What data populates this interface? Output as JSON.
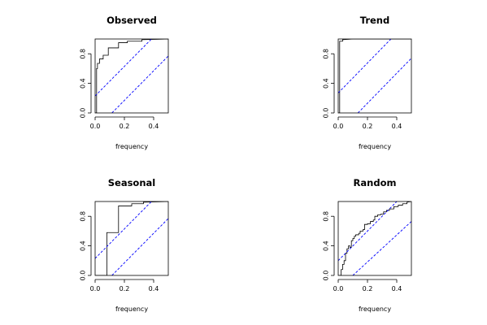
{
  "chart_data": [
    {
      "type": "line",
      "subtype": "cumulative-periodogram",
      "title": "Observed",
      "xlabel": "frequency",
      "ylabel": "",
      "xlim": [
        0,
        0.5
      ],
      "ylim": [
        0,
        1
      ],
      "xticks": [
        0.0,
        0.2,
        0.4
      ],
      "xtick_labels": [
        "0.0",
        "0.2",
        "0.4"
      ],
      "yticks": [
        0.0,
        0.4,
        0.8
      ],
      "ytick_labels": [
        "0.0",
        "0.4",
        "0.8"
      ],
      "grid": false,
      "series": [
        {
          "role": "cumulative-periodogram",
          "color": "#000000",
          "points": [
            [
              0.0,
              0.0
            ],
            [
              0.01,
              0.0
            ],
            [
              0.01,
              0.6
            ],
            [
              0.016,
              0.6
            ],
            [
              0.016,
              0.67
            ],
            [
              0.03,
              0.67
            ],
            [
              0.03,
              0.73
            ],
            [
              0.055,
              0.73
            ],
            [
              0.055,
              0.78
            ],
            [
              0.09,
              0.78
            ],
            [
              0.09,
              0.88
            ],
            [
              0.16,
              0.88
            ],
            [
              0.16,
              0.95
            ],
            [
              0.22,
              0.95
            ],
            [
              0.22,
              0.97
            ],
            [
              0.32,
              0.97
            ],
            [
              0.32,
              0.99
            ],
            [
              0.5,
              1.0
            ]
          ]
        },
        {
          "role": "confidence-band-upper",
          "color": "#0000ff",
          "dashed": true,
          "points": [
            [
              0.0,
              0.23
            ],
            [
              0.385,
              1.0
            ]
          ]
        },
        {
          "role": "confidence-band-lower",
          "color": "#0000ff",
          "dashed": true,
          "points": [
            [
              0.115,
              0.0
            ],
            [
              0.5,
              0.77
            ]
          ]
        }
      ]
    },
    {
      "type": "line",
      "subtype": "cumulative-periodogram",
      "title": "Trend",
      "xlabel": "frequency",
      "ylabel": "",
      "xlim": [
        0,
        0.5
      ],
      "ylim": [
        0,
        1
      ],
      "xticks": [
        0.0,
        0.2,
        0.4
      ],
      "xtick_labels": [
        "0.0",
        "0.2",
        "0.4"
      ],
      "yticks": [
        0.0,
        0.4,
        0.8
      ],
      "ytick_labels": [
        "0.0",
        "0.4",
        "0.8"
      ],
      "grid": false,
      "series": [
        {
          "role": "cumulative-periodogram",
          "color": "#000000",
          "points": [
            [
              0.0,
              0.0
            ],
            [
              0.01,
              0.0
            ],
            [
              0.01,
              0.97
            ],
            [
              0.03,
              0.97
            ],
            [
              0.03,
              0.99
            ],
            [
              0.1,
              1.0
            ],
            [
              0.5,
              1.0
            ]
          ]
        },
        {
          "role": "confidence-band-upper",
          "color": "#0000ff",
          "dashed": true,
          "points": [
            [
              0.0,
              0.27
            ],
            [
              0.36,
              1.0
            ]
          ]
        },
        {
          "role": "confidence-band-lower",
          "color": "#0000ff",
          "dashed": true,
          "points": [
            [
              0.135,
              0.0
            ],
            [
              0.495,
              0.73
            ]
          ]
        }
      ]
    },
    {
      "type": "line",
      "subtype": "cumulative-periodogram",
      "title": "Seasonal",
      "xlabel": "frequency",
      "ylabel": "",
      "xlim": [
        0,
        0.5
      ],
      "ylim": [
        0,
        1
      ],
      "xticks": [
        0.0,
        0.2,
        0.4
      ],
      "xtick_labels": [
        "0.0",
        "0.2",
        "0.4"
      ],
      "yticks": [
        0.0,
        0.4,
        0.8
      ],
      "ytick_labels": [
        "0.0",
        "0.4",
        "0.8"
      ],
      "grid": false,
      "series": [
        {
          "role": "cumulative-periodogram",
          "color": "#000000",
          "points": [
            [
              0.0,
              0.0
            ],
            [
              0.08,
              0.0
            ],
            [
              0.08,
              0.58
            ],
            [
              0.16,
              0.58
            ],
            [
              0.16,
              0.94
            ],
            [
              0.25,
              0.94
            ],
            [
              0.25,
              0.97
            ],
            [
              0.33,
              0.97
            ],
            [
              0.33,
              0.99
            ],
            [
              0.5,
              1.0
            ]
          ]
        },
        {
          "role": "confidence-band-upper",
          "color": "#0000ff",
          "dashed": true,
          "points": [
            [
              0.0,
              0.23
            ],
            [
              0.385,
              1.0
            ]
          ]
        },
        {
          "role": "confidence-band-lower",
          "color": "#0000ff",
          "dashed": true,
          "points": [
            [
              0.115,
              0.0
            ],
            [
              0.5,
              0.77
            ]
          ]
        }
      ]
    },
    {
      "type": "line",
      "subtype": "cumulative-periodogram",
      "title": "Random",
      "xlabel": "frequency",
      "ylabel": "",
      "xlim": [
        0,
        0.5
      ],
      "ylim": [
        0,
        1
      ],
      "xticks": [
        0.0,
        0.2,
        0.4
      ],
      "xtick_labels": [
        "0.0",
        "0.2",
        "0.4"
      ],
      "yticks": [
        0.0,
        0.4,
        0.8
      ],
      "ytick_labels": [
        "0.0",
        "0.4",
        "0.8"
      ],
      "grid": false,
      "series": [
        {
          "role": "cumulative-periodogram",
          "color": "#000000",
          "points": [
            [
              0.0,
              0.0
            ],
            [
              0.02,
              0.0
            ],
            [
              0.02,
              0.08
            ],
            [
              0.03,
              0.08
            ],
            [
              0.03,
              0.15
            ],
            [
              0.04,
              0.15
            ],
            [
              0.04,
              0.2
            ],
            [
              0.05,
              0.2
            ],
            [
              0.05,
              0.3
            ],
            [
              0.06,
              0.3
            ],
            [
              0.06,
              0.36
            ],
            [
              0.07,
              0.36
            ],
            [
              0.07,
              0.4
            ],
            [
              0.08,
              0.4
            ],
            [
              0.08,
              0.38
            ],
            [
              0.09,
              0.38
            ],
            [
              0.09,
              0.47
            ],
            [
              0.1,
              0.47
            ],
            [
              0.1,
              0.5
            ],
            [
              0.11,
              0.5
            ],
            [
              0.11,
              0.53
            ],
            [
              0.12,
              0.53
            ],
            [
              0.12,
              0.55
            ],
            [
              0.14,
              0.55
            ],
            [
              0.14,
              0.57
            ],
            [
              0.15,
              0.57
            ],
            [
              0.15,
              0.6
            ],
            [
              0.17,
              0.6
            ],
            [
              0.17,
              0.62
            ],
            [
              0.18,
              0.62
            ],
            [
              0.18,
              0.69
            ],
            [
              0.2,
              0.69
            ],
            [
              0.2,
              0.7
            ],
            [
              0.22,
              0.7
            ],
            [
              0.22,
              0.73
            ],
            [
              0.24,
              0.73
            ],
            [
              0.24,
              0.75
            ],
            [
              0.25,
              0.75
            ],
            [
              0.25,
              0.8
            ],
            [
              0.27,
              0.8
            ],
            [
              0.27,
              0.82
            ],
            [
              0.29,
              0.82
            ],
            [
              0.29,
              0.83
            ],
            [
              0.31,
              0.83
            ],
            [
              0.31,
              0.86
            ],
            [
              0.33,
              0.86
            ],
            [
              0.33,
              0.88
            ],
            [
              0.35,
              0.88
            ],
            [
              0.35,
              0.9
            ],
            [
              0.38,
              0.9
            ],
            [
              0.38,
              0.93
            ],
            [
              0.41,
              0.93
            ],
            [
              0.41,
              0.95
            ],
            [
              0.44,
              0.95
            ],
            [
              0.44,
              0.97
            ],
            [
              0.47,
              0.97
            ],
            [
              0.47,
              0.99
            ],
            [
              0.5,
              1.0
            ]
          ]
        },
        {
          "role": "confidence-band-upper",
          "color": "#0000ff",
          "dashed": true,
          "points": [
            [
              0.0,
              0.2
            ],
            [
              0.4,
              1.0
            ]
          ]
        },
        {
          "role": "confidence-band-lower",
          "color": "#0000ff",
          "dashed": true,
          "points": [
            [
              0.1,
              0.0
            ],
            [
              0.5,
              0.73
            ]
          ]
        }
      ]
    }
  ]
}
